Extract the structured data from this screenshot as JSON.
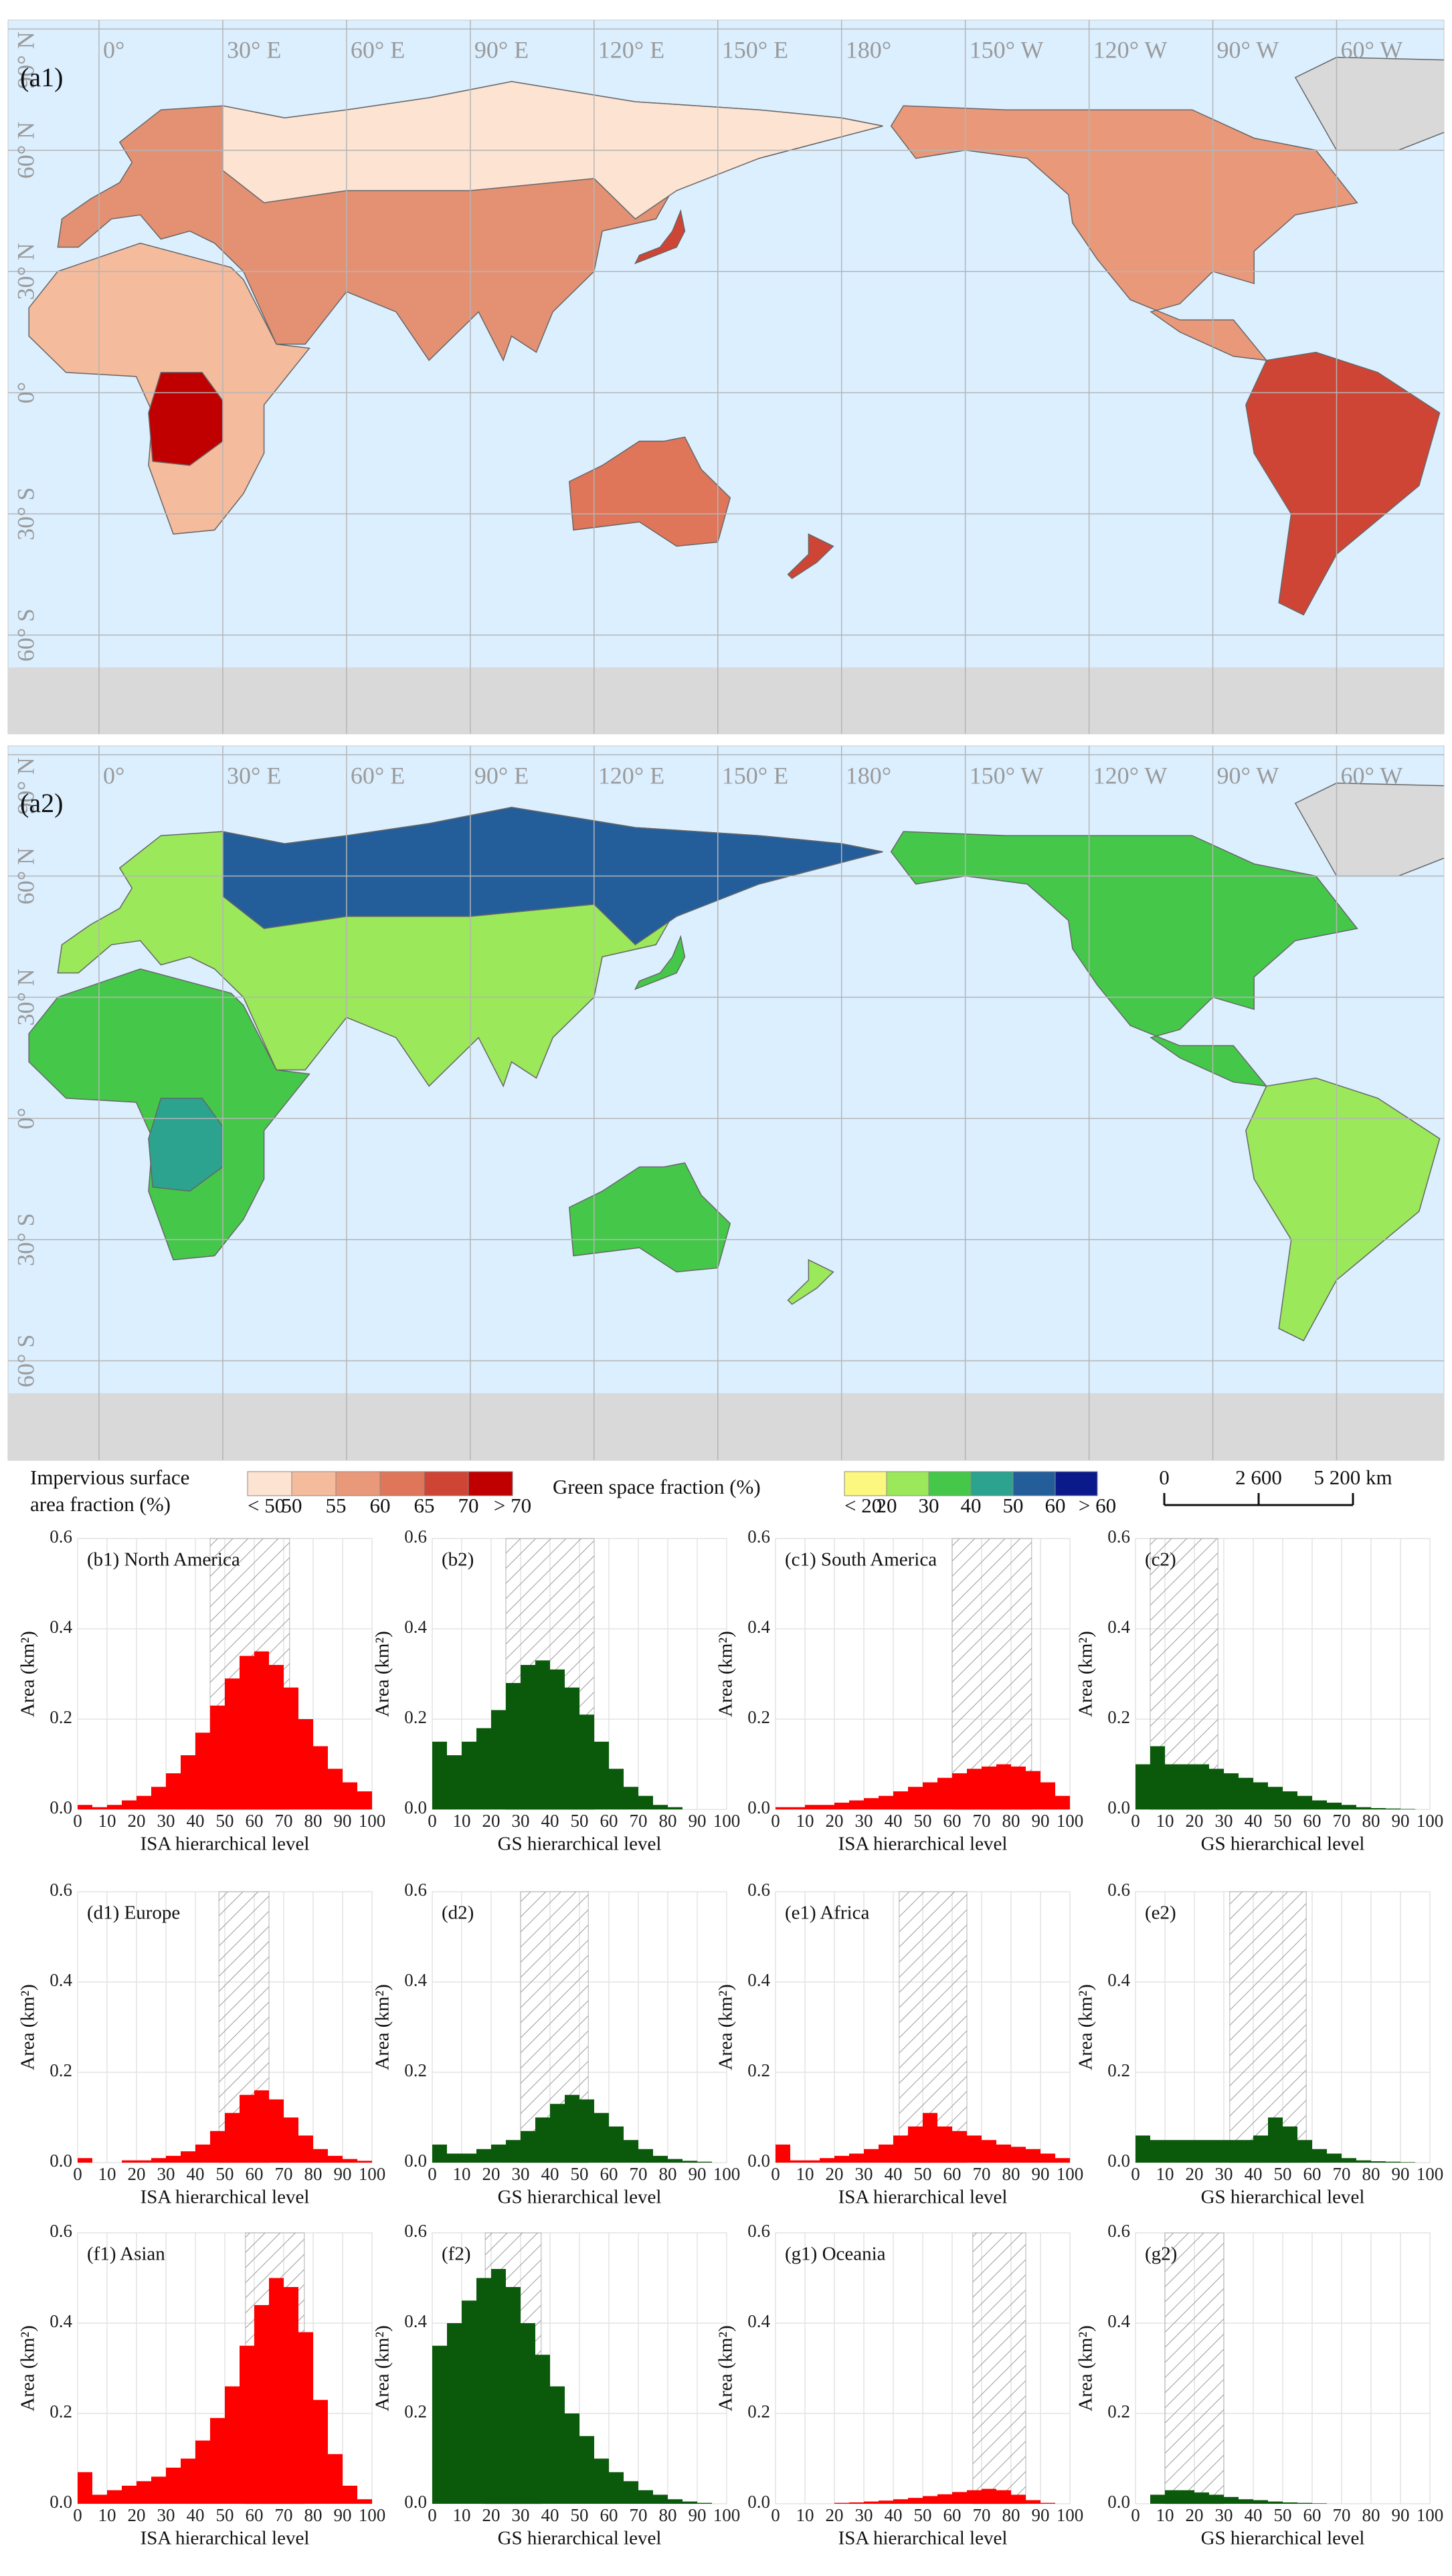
{
  "maps": [
    {
      "panel": "(a1)"
    },
    {
      "panel": "(a2)"
    }
  ],
  "map_axes": {
    "lon_labels": [
      "0°",
      "30° E",
      "60° E",
      "90° E",
      "120° E",
      "150° E",
      "180°",
      "150° W",
      "120° W",
      "90° W",
      "60° W"
    ],
    "lat_labels": [
      "90° N",
      "60° N",
      "30° N",
      "0°",
      "30° S",
      "60° S"
    ]
  },
  "legends": {
    "impervious": {
      "title_lines": [
        "Impervious surface",
        "area fraction (%)"
      ],
      "labels": [
        "< 50",
        "50",
        "55",
        "60",
        "65",
        "70",
        "> 70"
      ],
      "colors": [
        "#fde3d2",
        "#f4bb9d",
        "#e9997a",
        "#df765a",
        "#cf4535",
        "#c00000"
      ]
    },
    "green": {
      "title": "Green space fraction (%)",
      "labels": [
        "< 20",
        "20",
        "30",
        "40",
        "50",
        "60",
        "> 60"
      ],
      "colors": [
        "#fbf77f",
        "#9be85a",
        "#45c84a",
        "#2ba38e",
        "#245e9a",
        "#0b1a8a"
      ]
    },
    "scale_bar": {
      "labels": [
        "0",
        "2 600",
        "5 200 km"
      ]
    }
  },
  "chart_data": [
    {
      "type": "histogram",
      "title": "(b1) North America",
      "bins": [
        0,
        5,
        10,
        15,
        20,
        25,
        30,
        35,
        40,
        45,
        50,
        55,
        60,
        65,
        70,
        75,
        80,
        85,
        90,
        95,
        100
      ],
      "values": [
        0.01,
        0.005,
        0.01,
        0.02,
        0.03,
        0.05,
        0.08,
        0.12,
        0.17,
        0.23,
        0.29,
        0.34,
        0.35,
        0.32,
        0.27,
        0.2,
        0.14,
        0.09,
        0.06,
        0.04
      ],
      "color": "#ff0000",
      "shaded_range": [
        45,
        72
      ],
      "x_label": "ISA hierarchical level",
      "y_label": "Area (km²)",
      "xlim": [
        0,
        100
      ],
      "ylim": [
        0,
        0.6
      ],
      "xticks": [
        0,
        10,
        20,
        30,
        40,
        50,
        60,
        70,
        80,
        90,
        100
      ],
      "yticks": [
        {
          "value": 0,
          "label": "0.0"
        },
        0.2,
        0.4,
        0.6
      ],
      "grid": true
    },
    {
      "type": "histogram",
      "title": "(b2)",
      "bins": [
        0,
        5,
        10,
        15,
        20,
        25,
        30,
        35,
        40,
        45,
        50,
        55,
        60,
        65,
        70,
        75,
        80,
        85,
        90,
        95,
        100
      ],
      "values": [
        0.15,
        0.12,
        0.15,
        0.18,
        0.22,
        0.28,
        0.32,
        0.33,
        0.31,
        0.27,
        0.21,
        0.15,
        0.09,
        0.05,
        0.03,
        0.01,
        0.005,
        0,
        0,
        0
      ],
      "color": "#0b5a0b",
      "shaded_range": [
        25,
        55
      ],
      "x_label": "GS hierarchical level",
      "y_label": "Area (km²)",
      "xlim": [
        0,
        100
      ],
      "ylim": [
        0,
        0.6
      ],
      "xticks": [
        0,
        10,
        20,
        30,
        40,
        50,
        60,
        70,
        80,
        90,
        100
      ],
      "yticks": [
        {
          "value": 0,
          "label": "0.0"
        },
        0.2,
        0.4,
        0.6
      ],
      "grid": true
    },
    {
      "type": "histogram",
      "title": "(c1) South America",
      "bins": [
        0,
        5,
        10,
        15,
        20,
        25,
        30,
        35,
        40,
        45,
        50,
        55,
        60,
        65,
        70,
        75,
        80,
        85,
        90,
        95,
        100
      ],
      "values": [
        0.005,
        0.005,
        0.01,
        0.01,
        0.015,
        0.02,
        0.025,
        0.03,
        0.04,
        0.05,
        0.06,
        0.07,
        0.08,
        0.09,
        0.095,
        0.1,
        0.095,
        0.085,
        0.06,
        0.03
      ],
      "color": "#ff0000",
      "shaded_range": [
        60,
        87
      ],
      "x_label": "ISA hierarchical level",
      "y_label": "Area (km²)",
      "xlim": [
        0,
        100
      ],
      "ylim": [
        0,
        0.6
      ],
      "xticks": [
        0,
        10,
        20,
        30,
        40,
        50,
        60,
        70,
        80,
        90,
        100
      ],
      "yticks": [
        {
          "value": 0,
          "label": "0.0"
        },
        0.2,
        0.4,
        0.6
      ],
      "grid": true
    },
    {
      "type": "histogram",
      "title": "(c2)",
      "bins": [
        0,
        5,
        10,
        15,
        20,
        25,
        30,
        35,
        40,
        45,
        50,
        55,
        60,
        65,
        70,
        75,
        80,
        85,
        90,
        95,
        100
      ],
      "values": [
        0.1,
        0.14,
        0.1,
        0.1,
        0.1,
        0.09,
        0.08,
        0.07,
        0.06,
        0.05,
        0.04,
        0.03,
        0.02,
        0.015,
        0.01,
        0.005,
        0.003,
        0.002,
        0.001,
        0
      ],
      "color": "#0b5a0b",
      "shaded_range": [
        5,
        28
      ],
      "x_label": "GS hierarchical level",
      "y_label": "Area (km²)",
      "xlim": [
        0,
        100
      ],
      "ylim": [
        0,
        0.6
      ],
      "xticks": [
        0,
        10,
        20,
        30,
        40,
        50,
        60,
        70,
        80,
        90,
        100
      ],
      "yticks": [
        {
          "value": 0,
          "label": "0.0"
        },
        0.2,
        0.4,
        0.6
      ],
      "grid": true
    },
    {
      "type": "histogram",
      "title": "(d1) Europe",
      "bins": [
        0,
        5,
        10,
        15,
        20,
        25,
        30,
        35,
        40,
        45,
        50,
        55,
        60,
        65,
        70,
        75,
        80,
        85,
        90,
        95,
        100
      ],
      "values": [
        0.01,
        0,
        0,
        0.005,
        0.005,
        0.01,
        0.015,
        0.025,
        0.04,
        0.07,
        0.11,
        0.15,
        0.16,
        0.14,
        0.1,
        0.06,
        0.03,
        0.015,
        0.008,
        0.004
      ],
      "color": "#ff0000",
      "shaded_range": [
        48,
        65
      ],
      "x_label": "ISA hierarchical level",
      "y_label": "Area (km²)",
      "xlim": [
        0,
        100
      ],
      "ylim": [
        0,
        0.6
      ],
      "xticks": [
        0,
        10,
        20,
        30,
        40,
        50,
        60,
        70,
        80,
        90,
        100
      ],
      "yticks": [
        {
          "value": 0,
          "label": "0.0"
        },
        0.2,
        0.4,
        0.6
      ],
      "grid": true
    },
    {
      "type": "histogram",
      "title": "(d2)",
      "bins": [
        0,
        5,
        10,
        15,
        20,
        25,
        30,
        35,
        40,
        45,
        50,
        55,
        60,
        65,
        70,
        75,
        80,
        85,
        90,
        95,
        100
      ],
      "values": [
        0.04,
        0.02,
        0.02,
        0.03,
        0.04,
        0.05,
        0.07,
        0.1,
        0.13,
        0.15,
        0.14,
        0.11,
        0.08,
        0.05,
        0.03,
        0.015,
        0.008,
        0.004,
        0.002,
        0
      ],
      "color": "#0b5a0b",
      "shaded_range": [
        30,
        53
      ],
      "x_label": "GS hierarchical level",
      "y_label": "Area (km²)",
      "xlim": [
        0,
        100
      ],
      "ylim": [
        0,
        0.6
      ],
      "xticks": [
        0,
        10,
        20,
        30,
        40,
        50,
        60,
        70,
        80,
        90,
        100
      ],
      "yticks": [
        {
          "value": 0,
          "label": "0.0"
        },
        0.2,
        0.4,
        0.6
      ],
      "grid": true
    },
    {
      "type": "histogram",
      "title": "(e1) Africa",
      "bins": [
        0,
        5,
        10,
        15,
        20,
        25,
        30,
        35,
        40,
        45,
        50,
        55,
        60,
        65,
        70,
        75,
        80,
        85,
        90,
        95,
        100
      ],
      "values": [
        0.04,
        0.005,
        0.005,
        0.01,
        0.015,
        0.02,
        0.03,
        0.04,
        0.06,
        0.08,
        0.11,
        0.08,
        0.07,
        0.06,
        0.05,
        0.04,
        0.035,
        0.03,
        0.02,
        0.01
      ],
      "color": "#ff0000",
      "shaded_range": [
        42,
        65
      ],
      "x_label": "ISA hierarchical level",
      "y_label": "Area (km²)",
      "xlim": [
        0,
        100
      ],
      "ylim": [
        0,
        0.6
      ],
      "xticks": [
        0,
        10,
        20,
        30,
        40,
        50,
        60,
        70,
        80,
        90,
        100
      ],
      "yticks": [
        {
          "value": 0,
          "label": "0.0"
        },
        0.2,
        0.4,
        0.6
      ],
      "grid": true
    },
    {
      "type": "histogram",
      "title": "(e2)",
      "bins": [
        0,
        5,
        10,
        15,
        20,
        25,
        30,
        35,
        40,
        45,
        50,
        55,
        60,
        65,
        70,
        75,
        80,
        85,
        90,
        95,
        100
      ],
      "values": [
        0.06,
        0.05,
        0.05,
        0.05,
        0.05,
        0.05,
        0.05,
        0.05,
        0.06,
        0.1,
        0.08,
        0.05,
        0.03,
        0.02,
        0.01,
        0.005,
        0.003,
        0.002,
        0.001,
        0
      ],
      "color": "#0b5a0b",
      "shaded_range": [
        32,
        58
      ],
      "x_label": "GS hierarchical level",
      "y_label": "Area (km²)",
      "xlim": [
        0,
        100
      ],
      "ylim": [
        0,
        0.6
      ],
      "xticks": [
        0,
        10,
        20,
        30,
        40,
        50,
        60,
        70,
        80,
        90,
        100
      ],
      "yticks": [
        {
          "value": 0,
          "label": "0.0"
        },
        0.2,
        0.4,
        0.6
      ],
      "grid": true
    },
    {
      "type": "histogram",
      "title": "(f1) Asian",
      "bins": [
        0,
        5,
        10,
        15,
        20,
        25,
        30,
        35,
        40,
        45,
        50,
        55,
        60,
        65,
        70,
        75,
        80,
        85,
        90,
        95,
        100
      ],
      "values": [
        0.07,
        0.02,
        0.03,
        0.04,
        0.05,
        0.06,
        0.08,
        0.1,
        0.14,
        0.19,
        0.26,
        0.35,
        0.44,
        0.5,
        0.48,
        0.38,
        0.23,
        0.11,
        0.04,
        0.01
      ],
      "color": "#ff0000",
      "shaded_range": [
        57,
        77
      ],
      "x_label": "ISA hierarchical level",
      "y_label": "Area (km²)",
      "xlim": [
        0,
        100
      ],
      "ylim": [
        0,
        0.6
      ],
      "xticks": [
        0,
        10,
        20,
        30,
        40,
        50,
        60,
        70,
        80,
        90,
        100
      ],
      "yticks": [
        {
          "value": 0,
          "label": "0.0"
        },
        0.2,
        0.4,
        0.6
      ],
      "grid": true
    },
    {
      "type": "histogram",
      "title": "(f2)",
      "bins": [
        0,
        5,
        10,
        15,
        20,
        25,
        30,
        35,
        40,
        45,
        50,
        55,
        60,
        65,
        70,
        75,
        80,
        85,
        90,
        95,
        100
      ],
      "values": [
        0.35,
        0.4,
        0.45,
        0.5,
        0.52,
        0.48,
        0.4,
        0.33,
        0.26,
        0.2,
        0.15,
        0.1,
        0.07,
        0.05,
        0.03,
        0.02,
        0.01,
        0.005,
        0.002,
        0
      ],
      "color": "#0b5a0b",
      "shaded_range": [
        18,
        37
      ],
      "x_label": "GS hierarchical level",
      "y_label": "Area (km²)",
      "xlim": [
        0,
        100
      ],
      "ylim": [
        0,
        0.6
      ],
      "xticks": [
        0,
        10,
        20,
        30,
        40,
        50,
        60,
        70,
        80,
        90,
        100
      ],
      "yticks": [
        {
          "value": 0,
          "label": "0.0"
        },
        0.2,
        0.4,
        0.6
      ],
      "grid": true
    },
    {
      "type": "histogram",
      "title": "(g1) Oceania",
      "bins": [
        0,
        5,
        10,
        15,
        20,
        25,
        30,
        35,
        40,
        45,
        50,
        55,
        60,
        65,
        70,
        75,
        80,
        85,
        90,
        95,
        100
      ],
      "values": [
        0,
        0,
        0,
        0,
        0.002,
        0.003,
        0.005,
        0.007,
        0.01,
        0.013,
        0.017,
        0.021,
        0.026,
        0.03,
        0.033,
        0.03,
        0.02,
        0.008,
        0.002,
        0
      ],
      "color": "#ff0000",
      "shaded_range": [
        67,
        85
      ],
      "x_label": "ISA hierarchical level",
      "y_label": "Area (km²)",
      "xlim": [
        0,
        100
      ],
      "ylim": [
        0,
        0.6
      ],
      "xticks": [
        0,
        10,
        20,
        30,
        40,
        50,
        60,
        70,
        80,
        90,
        100
      ],
      "yticks": [
        {
          "value": 0,
          "label": "0.0"
        },
        0.2,
        0.4,
        0.6
      ],
      "grid": true
    },
    {
      "type": "histogram",
      "title": "(g2)",
      "bins": [
        0,
        5,
        10,
        15,
        20,
        25,
        30,
        35,
        40,
        45,
        50,
        55,
        60,
        65,
        70,
        75,
        80,
        85,
        90,
        95,
        100
      ],
      "values": [
        0,
        0.02,
        0.03,
        0.03,
        0.025,
        0.02,
        0.015,
        0.01,
        0.008,
        0.005,
        0.003,
        0.002,
        0.001,
        0,
        0,
        0,
        0,
        0,
        0,
        0
      ],
      "color": "#0b5a0b",
      "shaded_range": [
        10,
        30
      ],
      "x_label": "GS hierarchical level",
      "y_label": "Area (km²)",
      "xlim": [
        0,
        100
      ],
      "ylim": [
        0,
        0.6
      ],
      "xticks": [
        0,
        10,
        20,
        30,
        40,
        50,
        60,
        70,
        80,
        90,
        100
      ],
      "yticks": [
        {
          "value": 0,
          "label": "0.0"
        },
        0.2,
        0.4,
        0.6
      ],
      "grid": true
    }
  ]
}
